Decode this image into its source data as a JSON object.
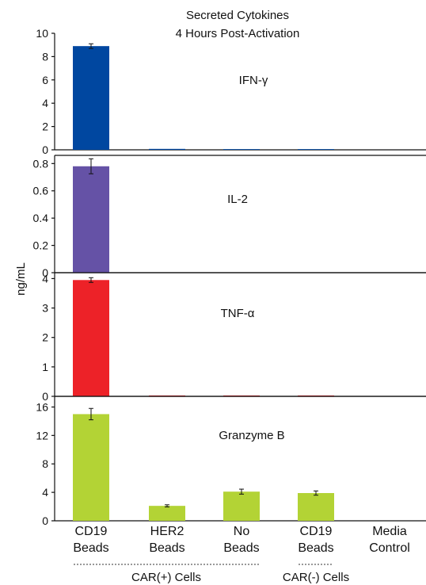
{
  "chart_data": {
    "type": "bar",
    "title": [
      "Secreted Cytokines",
      "4 Hours Post-Activation"
    ],
    "ylabel": "ng/mL",
    "categories": [
      [
        "CD19",
        "Beads"
      ],
      [
        "HER2",
        "Beads"
      ],
      [
        "No",
        "Beads"
      ],
      [
        "CD19",
        "Beads"
      ],
      [
        "Media",
        "Control"
      ]
    ],
    "groups": [
      {
        "label": "CAR(+) Cells",
        "categories": [
          0,
          1,
          2
        ]
      },
      {
        "label": "CAR(-) Cells",
        "categories": [
          3
        ]
      }
    ],
    "panels": [
      {
        "name": "IFN-γ",
        "color": "#0047a0",
        "ylim": [
          0,
          10
        ],
        "yticks": [
          0,
          2,
          4,
          6,
          8,
          10
        ],
        "values": [
          8.9,
          0.08,
          0.06,
          0.06,
          0.0
        ],
        "errors": [
          0.2,
          0.0,
          0.0,
          0.0,
          0.0
        ]
      },
      {
        "name": "IL-2",
        "color": "#6552a6",
        "ylim": [
          0,
          0.86
        ],
        "yticks": [
          0,
          0.2,
          0.4,
          0.6,
          0.8
        ],
        "values": [
          0.78,
          0.0,
          0.0,
          0.0,
          0.0
        ],
        "errors": [
          0.055,
          0.0,
          0.0,
          0.0,
          0.0
        ]
      },
      {
        "name": "TNF-α",
        "color": "#ed2228",
        "ylim": [
          0,
          4.2
        ],
        "yticks": [
          0,
          1,
          2,
          3,
          4
        ],
        "values": [
          3.95,
          0.03,
          0.03,
          0.03,
          0.0
        ],
        "errors": [
          0.08,
          0.0,
          0.0,
          0.0,
          0.0
        ]
      },
      {
        "name": "Granzyme B",
        "color": "#b3d335",
        "ylim": [
          0,
          17.5
        ],
        "yticks": [
          0,
          4,
          8,
          12,
          16
        ],
        "values": [
          15.0,
          2.1,
          4.1,
          3.9,
          0.0
        ],
        "errors": [
          0.8,
          0.15,
          0.35,
          0.3,
          0.0
        ]
      }
    ]
  }
}
